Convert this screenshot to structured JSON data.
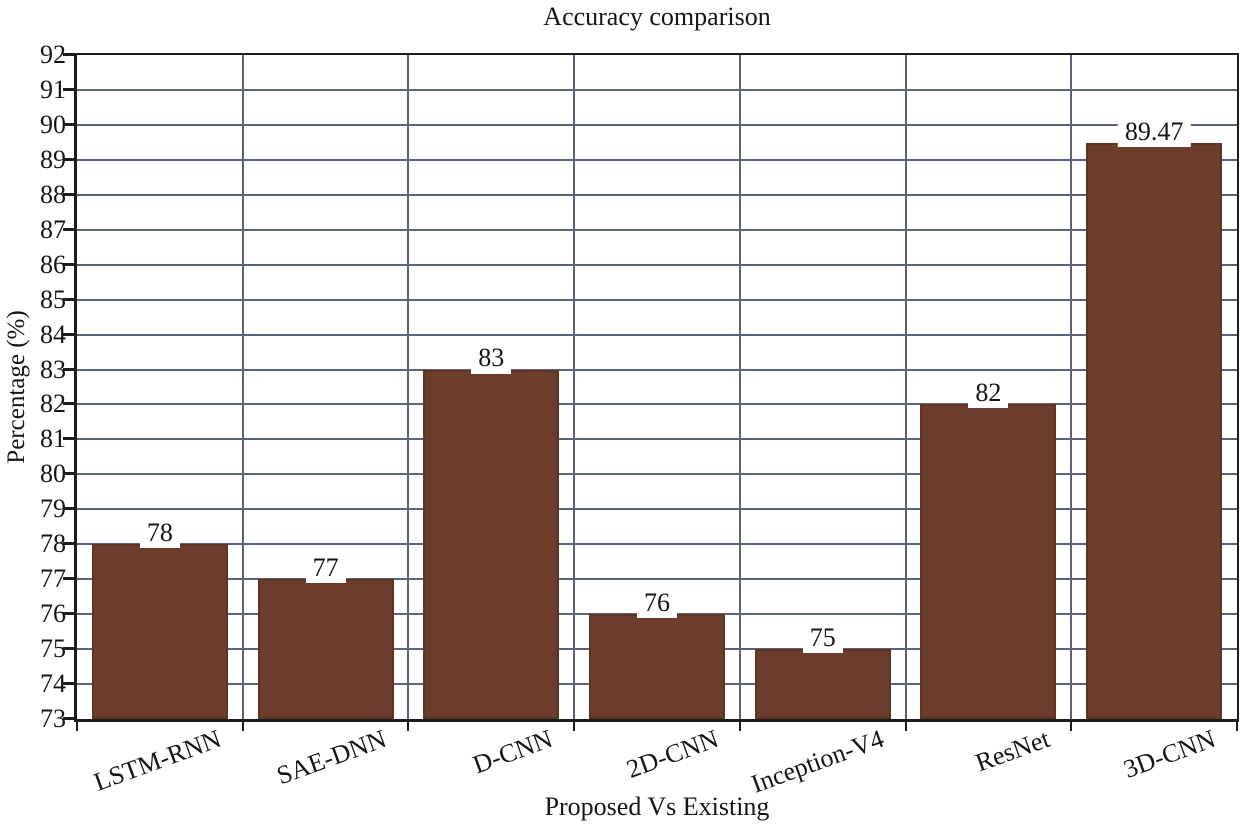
{
  "chart_data": {
    "type": "bar",
    "title": "Accuracy comparison",
    "xlabel": "Proposed Vs Existing",
    "ylabel": "Percentage (%)",
    "categories": [
      "LSTM-RNN",
      "SAE-DNN",
      "D-CNN",
      "2D-CNN",
      "Inception-V4",
      "ResNet",
      "3D-CNN"
    ],
    "values": [
      78,
      77,
      83,
      76,
      75,
      82,
      89.47
    ],
    "value_labels": [
      "78",
      "77",
      "83",
      "76",
      "75",
      "82",
      "89.47"
    ],
    "ylim": [
      73,
      92
    ],
    "ytick_step": 1,
    "grid": "full cell grid: horizontal line at every integer, vertical line at every category boundary",
    "legend": "none",
    "colors": {
      "bar_fill": "#6c3d2c",
      "bar_edge": "#5e3423",
      "grid_line": "#5a6379",
      "axis_line": "#1c1c1c",
      "text": "#151515",
      "background": "#ffffff"
    }
  }
}
